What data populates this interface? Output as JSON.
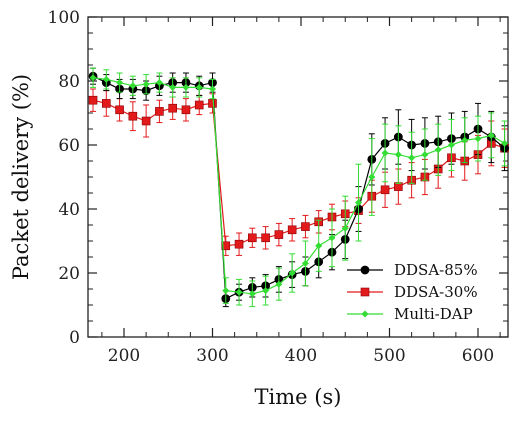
{
  "chart_data": {
    "type": "line",
    "xlabel": "Time (s)",
    "ylabel": "Packet delivery (%)",
    "xlim": [
      155,
      630
    ],
    "ylim": [
      0,
      100
    ],
    "x_ticks": [
      200,
      300,
      400,
      500,
      600
    ],
    "y_ticks": [
      0,
      20,
      40,
      60,
      80,
      100
    ],
    "grid": false,
    "legend_position": "lower-right",
    "series": [
      {
        "name": "DDSA-85%",
        "color": "#000000",
        "marker": "circle",
        "x": [
          165,
          180,
          195,
          210,
          225,
          240,
          255,
          270,
          285,
          300,
          315,
          330,
          345,
          360,
          375,
          390,
          405,
          420,
          435,
          450,
          465,
          480,
          495,
          510,
          525,
          540,
          555,
          570,
          585,
          600,
          615,
          630
        ],
        "y": [
          81.5,
          79.5,
          77.5,
          77.5,
          77.0,
          78.5,
          79.5,
          79.5,
          78.5,
          79.5,
          12.0,
          14.0,
          15.5,
          16.0,
          18.0,
          19.5,
          20.5,
          23.5,
          26.5,
          30.5,
          40.0,
          55.5,
          60.5,
          62.5,
          60.0,
          60.5,
          61.0,
          62.0,
          62.5,
          65.0,
          62.5,
          59.0
        ],
        "err": [
          2.5,
          2.5,
          3.0,
          3.0,
          3.0,
          3.0,
          3.0,
          3.0,
          3.0,
          3.0,
          2.5,
          2.5,
          3.0,
          3.5,
          4.0,
          4.0,
          4.5,
          5.0,
          5.5,
          6.0,
          7.0,
          8.0,
          8.0,
          8.5,
          8.0,
          8.0,
          8.0,
          8.0,
          8.0,
          8.0,
          8.0,
          7.0
        ]
      },
      {
        "name": "DDSA-30%",
        "color": "#e31a1c",
        "marker": "square",
        "x": [
          165,
          180,
          195,
          210,
          225,
          240,
          255,
          270,
          285,
          300,
          315,
          330,
          345,
          360,
          375,
          390,
          405,
          420,
          435,
          450,
          465,
          480,
          495,
          510,
          525,
          540,
          555,
          570,
          585,
          600,
          615,
          630
        ],
        "y": [
          74.0,
          73.0,
          71.0,
          69.0,
          67.5,
          70.5,
          71.5,
          71.0,
          72.5,
          73.0,
          28.5,
          29.0,
          31.0,
          31.0,
          32.0,
          33.5,
          34.5,
          36.0,
          37.5,
          38.5,
          39.5,
          44.0,
          46.0,
          47.0,
          49.0,
          50.0,
          52.5,
          56.0,
          55.0,
          57.0,
          60.5,
          59.0
        ],
        "err": [
          3.5,
          4.0,
          3.5,
          4.5,
          5.0,
          3.5,
          3.5,
          3.5,
          3.0,
          3.0,
          3.0,
          3.5,
          3.0,
          3.5,
          3.5,
          3.5,
          3.5,
          3.5,
          4.0,
          4.0,
          4.0,
          5.0,
          5.5,
          5.5,
          5.5,
          5.5,
          6.0,
          6.0,
          6.0,
          6.0,
          7.0,
          6.0
        ]
      },
      {
        "name": "Multi-DAP",
        "color": "#33dd33",
        "marker": "diamond",
        "x": [
          165,
          180,
          195,
          210,
          225,
          240,
          255,
          270,
          285,
          300,
          315,
          330,
          345,
          360,
          375,
          390,
          405,
          420,
          435,
          450,
          465,
          480,
          495,
          510,
          525,
          540,
          555,
          570,
          585,
          600,
          615,
          630
        ],
        "y": [
          81.0,
          80.5,
          79.5,
          78.5,
          79.0,
          79.5,
          78.0,
          78.0,
          78.0,
          77.5,
          14.5,
          14.0,
          13.5,
          14.5,
          16.5,
          20.0,
          23.0,
          28.5,
          31.0,
          34.0,
          42.0,
          50.0,
          57.5,
          57.0,
          56.0,
          57.0,
          58.5,
          60.0,
          61.5,
          62.0,
          63.0,
          60.5
        ],
        "err": [
          3.0,
          3.0,
          3.0,
          3.0,
          3.0,
          3.0,
          3.0,
          3.0,
          3.0,
          3.0,
          4.0,
          4.0,
          4.0,
          4.5,
          5.0,
          6.0,
          7.0,
          8.0,
          9.0,
          10.0,
          12.0,
          12.0,
          9.0,
          9.0,
          8.0,
          8.0,
          8.0,
          8.0,
          7.0,
          7.0,
          7.0,
          7.0
        ]
      }
    ]
  }
}
